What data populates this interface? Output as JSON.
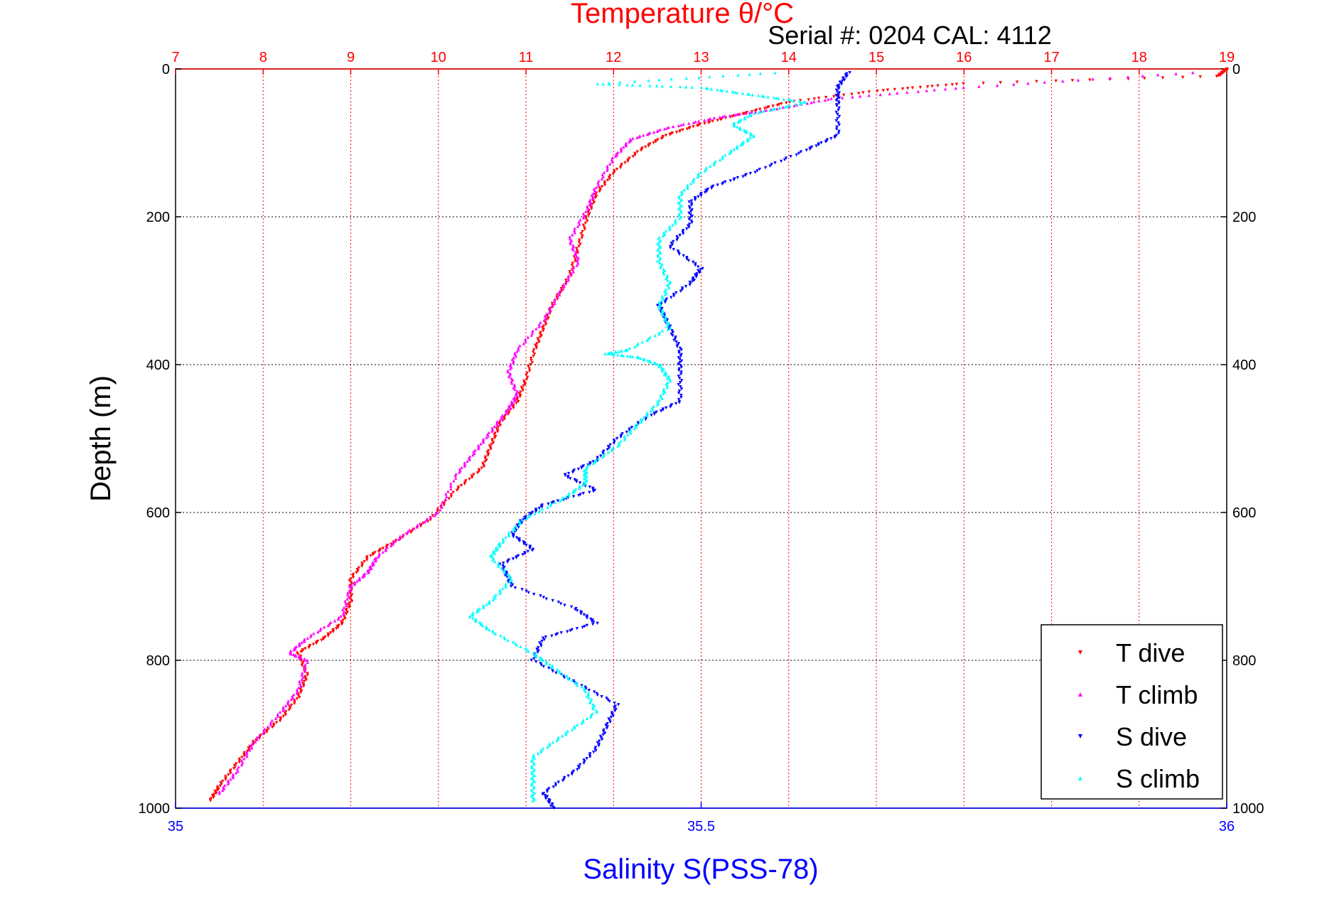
{
  "chart_data": {
    "type": "scatter",
    "title": "Temperature θ/°C",
    "subtitle": "Serial #: 0204  CAL: 4112",
    "ylabel": "Depth (m)",
    "xlabel_bottom": "Salinity S(PSS-78)",
    "temperature_axis": {
      "range": [
        7,
        19
      ],
      "ticks": [
        "7",
        "8",
        "9",
        "10",
        "11",
        "12",
        "13",
        "14",
        "15",
        "16",
        "17",
        "18",
        "19"
      ]
    },
    "salinity_axis": {
      "range": [
        35,
        36
      ],
      "ticks": [
        "35",
        "35.5",
        "36"
      ]
    },
    "depth_axis": {
      "range": [
        0,
        1000
      ],
      "reversed": true,
      "ticks": [
        "0",
        "200",
        "400",
        "600",
        "800",
        "1000"
      ]
    },
    "grid": true,
    "legend_position": "bottom-right",
    "colors": {
      "T_dive": "#ff0000",
      "T_climb": "#ff00ff",
      "S_dive": "#0000ff",
      "S_climb": "#00ffff",
      "temp_axis": "#ff0000",
      "sal_axis": "#0000ff",
      "frame": "#000000"
    },
    "series": [
      {
        "name": "T dive",
        "axis": "temperature",
        "marker": "triangle-down",
        "points": [
          [
            19.0,
            0
          ],
          [
            18.9,
            10
          ],
          [
            16.0,
            20
          ],
          [
            15.0,
            30
          ],
          [
            14.0,
            45
          ],
          [
            13.5,
            60
          ],
          [
            13.0,
            75
          ],
          [
            12.6,
            90
          ],
          [
            12.3,
            110
          ],
          [
            12.0,
            140
          ],
          [
            11.8,
            170
          ],
          [
            11.7,
            200
          ],
          [
            11.6,
            240
          ],
          [
            11.5,
            280
          ],
          [
            11.3,
            320
          ],
          [
            11.2,
            350
          ],
          [
            11.1,
            380
          ],
          [
            11.0,
            420
          ],
          [
            10.9,
            450
          ],
          [
            10.7,
            480
          ],
          [
            10.6,
            510
          ],
          [
            10.5,
            540
          ],
          [
            10.2,
            570
          ],
          [
            9.9,
            610
          ],
          [
            9.5,
            640
          ],
          [
            9.2,
            660
          ],
          [
            9.0,
            690
          ],
          [
            9.0,
            720
          ],
          [
            8.9,
            750
          ],
          [
            8.7,
            770
          ],
          [
            8.4,
            790
          ],
          [
            8.5,
            820
          ],
          [
            8.4,
            850
          ],
          [
            8.2,
            880
          ],
          [
            7.9,
            910
          ],
          [
            7.7,
            940
          ],
          [
            7.5,
            970
          ],
          [
            7.4,
            990
          ]
        ]
      },
      {
        "name": "T climb",
        "axis": "temperature",
        "marker": "triangle-up",
        "points": [
          [
            18.6,
            5
          ],
          [
            16.0,
            25
          ],
          [
            14.5,
            40
          ],
          [
            13.8,
            55
          ],
          [
            13.2,
            65
          ],
          [
            12.6,
            80
          ],
          [
            12.2,
            95
          ],
          [
            12.0,
            120
          ],
          [
            11.8,
            160
          ],
          [
            11.7,
            190
          ],
          [
            11.5,
            230
          ],
          [
            11.6,
            260
          ],
          [
            11.4,
            300
          ],
          [
            11.2,
            340
          ],
          [
            10.9,
            380
          ],
          [
            10.8,
            410
          ],
          [
            10.9,
            440
          ],
          [
            10.8,
            460
          ],
          [
            10.6,
            490
          ],
          [
            10.4,
            520
          ],
          [
            10.2,
            550
          ],
          [
            10.0,
            600
          ],
          [
            9.6,
            630
          ],
          [
            9.3,
            660
          ],
          [
            9.2,
            680
          ],
          [
            9.0,
            700
          ],
          [
            8.9,
            740
          ],
          [
            8.5,
            770
          ],
          [
            8.3,
            790
          ],
          [
            8.5,
            800
          ],
          [
            8.4,
            840
          ],
          [
            8.2,
            870
          ],
          [
            7.9,
            910
          ],
          [
            7.7,
            950
          ],
          [
            7.5,
            980
          ]
        ]
      },
      {
        "name": "S dive",
        "axis": "salinity",
        "marker": "triangle-down",
        "points": [
          [
            35.64,
            5
          ],
          [
            35.63,
            25
          ],
          [
            35.63,
            50
          ],
          [
            35.63,
            90
          ],
          [
            35.6,
            110
          ],
          [
            35.55,
            140
          ],
          [
            35.51,
            160
          ],
          [
            35.49,
            180
          ],
          [
            35.49,
            210
          ],
          [
            35.47,
            240
          ],
          [
            35.5,
            270
          ],
          [
            35.49,
            290
          ],
          [
            35.46,
            320
          ],
          [
            35.47,
            350
          ],
          [
            35.48,
            380
          ],
          [
            35.48,
            410
          ],
          [
            35.48,
            450
          ],
          [
            35.45,
            470
          ],
          [
            35.42,
            500
          ],
          [
            35.4,
            530
          ],
          [
            35.37,
            550
          ],
          [
            35.4,
            570
          ],
          [
            35.35,
            590
          ],
          [
            35.33,
            610
          ],
          [
            35.32,
            630
          ],
          [
            35.34,
            650
          ],
          [
            35.31,
            670
          ],
          [
            35.32,
            700
          ],
          [
            35.38,
            730
          ],
          [
            35.4,
            750
          ],
          [
            35.35,
            770
          ],
          [
            35.34,
            800
          ],
          [
            35.38,
            830
          ],
          [
            35.42,
            860
          ],
          [
            35.41,
            890
          ],
          [
            35.4,
            920
          ],
          [
            35.38,
            950
          ],
          [
            35.35,
            980
          ],
          [
            35.36,
            1000
          ]
        ]
      },
      {
        "name": "S climb",
        "axis": "salinity",
        "marker": "triangle-up",
        "points": [
          [
            35.57,
            5
          ],
          [
            35.4,
            20
          ],
          [
            35.5,
            25
          ],
          [
            35.55,
            35
          ],
          [
            35.6,
            45
          ],
          [
            35.55,
            60
          ],
          [
            35.53,
            75
          ],
          [
            35.55,
            90
          ],
          [
            35.53,
            110
          ],
          [
            35.5,
            140
          ],
          [
            35.48,
            170
          ],
          [
            35.48,
            200
          ],
          [
            35.46,
            230
          ],
          [
            35.46,
            260
          ],
          [
            35.47,
            290
          ],
          [
            35.46,
            320
          ],
          [
            35.47,
            350
          ],
          [
            35.43,
            380
          ],
          [
            35.41,
            385
          ],
          [
            35.44,
            390
          ],
          [
            35.46,
            400
          ],
          [
            35.47,
            420
          ],
          [
            35.46,
            450
          ],
          [
            35.44,
            480
          ],
          [
            35.42,
            510
          ],
          [
            35.39,
            540
          ],
          [
            35.39,
            560
          ],
          [
            35.37,
            580
          ],
          [
            35.33,
            610
          ],
          [
            35.31,
            640
          ],
          [
            35.3,
            660
          ],
          [
            35.32,
            690
          ],
          [
            35.3,
            720
          ],
          [
            35.28,
            740
          ],
          [
            35.3,
            760
          ],
          [
            35.34,
            790
          ],
          [
            35.36,
            810
          ],
          [
            35.39,
            840
          ],
          [
            35.4,
            870
          ],
          [
            35.37,
            900
          ],
          [
            35.34,
            930
          ],
          [
            35.34,
            960
          ],
          [
            35.34,
            990
          ]
        ]
      }
    ]
  }
}
